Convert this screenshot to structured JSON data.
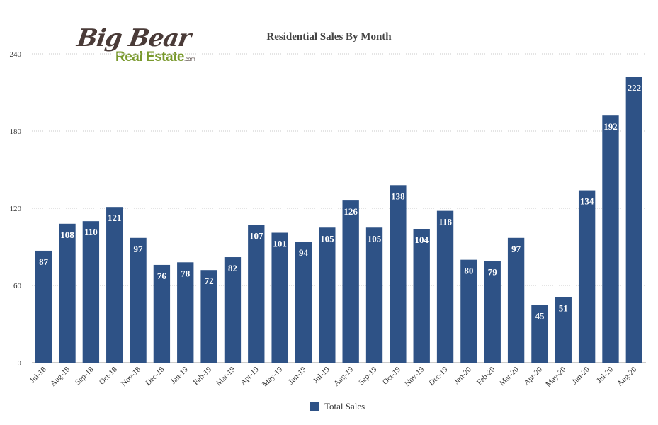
{
  "logo": {
    "top": "Big Bear",
    "bottom": "Real Estate",
    "suffix": ".com"
  },
  "colors": {
    "bar": "#2e5286",
    "grid": "#c8c8c8",
    "label": "#ffffff"
  },
  "chart_data": {
    "type": "bar",
    "title": "Residential Sales By Month",
    "categories": [
      "Jul-18",
      "Aug-18",
      "Sep-18",
      "Oct-18",
      "Nov-18",
      "Dec-18",
      "Jan-19",
      "Feb-19",
      "Mar-19",
      "Apr-19",
      "May-19",
      "Jun-19",
      "Jul-19",
      "Aug-19",
      "Sep-19",
      "Oct-19",
      "Nov-19",
      "Dec-19",
      "Jan-20",
      "Feb-20",
      "Mar-20",
      "Apr-20",
      "May-20",
      "Jun-20",
      "Jul-20",
      "Aug-20"
    ],
    "series": [
      {
        "name": "Total Sales",
        "values": [
          87,
          108,
          110,
          121,
          97,
          76,
          78,
          72,
          82,
          107,
          101,
          94,
          105,
          126,
          105,
          138,
          104,
          118,
          80,
          79,
          97,
          45,
          51,
          134,
          192,
          222
        ]
      }
    ],
    "ylim": [
      0,
      240
    ],
    "yticks": [
      0,
      60,
      120,
      180,
      240
    ],
    "grid": true,
    "legend_position": "bottom"
  }
}
